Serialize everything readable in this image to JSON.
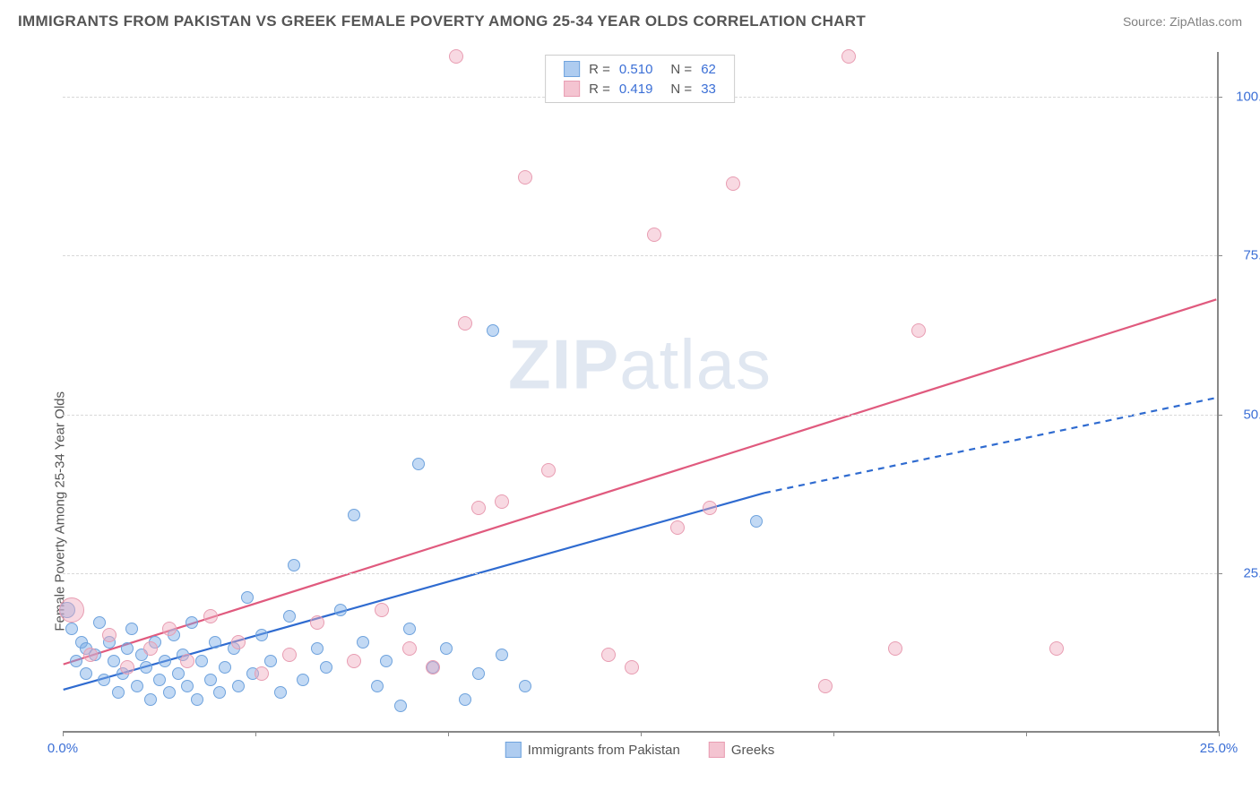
{
  "title": "IMMIGRANTS FROM PAKISTAN VS GREEK FEMALE POVERTY AMONG 25-34 YEAR OLDS CORRELATION CHART",
  "source": "Source: ZipAtlas.com",
  "y_axis_label": "Female Poverty Among 25-34 Year Olds",
  "watermark_a": "ZIP",
  "watermark_b": "atlas",
  "x_range": [
    0,
    25
  ],
  "y_range": [
    0,
    107
  ],
  "y_ticks": [
    {
      "v": 25,
      "label": "25.0%"
    },
    {
      "v": 50,
      "label": "50.0%"
    },
    {
      "v": 75,
      "label": "75.0%"
    },
    {
      "v": 100,
      "label": "100.0%"
    }
  ],
  "x_ticks_minor": [
    0,
    4.17,
    8.33,
    12.5,
    16.67,
    20.83,
    25
  ],
  "x_tick_left": {
    "v": 0,
    "label": "0.0%"
  },
  "x_tick_right": {
    "v": 25,
    "label": "25.0%"
  },
  "series": [
    {
      "name": "Immigrants from Pakistan",
      "color_fill": "rgba(120,170,230,0.45)",
      "color_stroke": "#6fa3dd",
      "swatch_fill": "#aeccf0",
      "swatch_stroke": "#6fa3dd",
      "trend_color": "#2f6bd0",
      "R": "0.510",
      "N": "62",
      "trend": {
        "x1": 0,
        "y1": 6.5,
        "x2": 15.2,
        "y2": 37.5,
        "x2_ext": 25,
        "y2_ext": 52.5,
        "dashed_ext": true
      },
      "points": [
        {
          "x": 0.1,
          "y": 19,
          "r": 9
        },
        {
          "x": 0.2,
          "y": 16,
          "r": 7
        },
        {
          "x": 0.3,
          "y": 11,
          "r": 7
        },
        {
          "x": 0.4,
          "y": 14,
          "r": 7
        },
        {
          "x": 0.5,
          "y": 13,
          "r": 7
        },
        {
          "x": 0.5,
          "y": 9,
          "r": 7
        },
        {
          "x": 0.7,
          "y": 12,
          "r": 7
        },
        {
          "x": 0.8,
          "y": 17,
          "r": 7
        },
        {
          "x": 0.9,
          "y": 8,
          "r": 7
        },
        {
          "x": 1.0,
          "y": 14,
          "r": 7
        },
        {
          "x": 1.1,
          "y": 11,
          "r": 7
        },
        {
          "x": 1.2,
          "y": 6,
          "r": 7
        },
        {
          "x": 1.3,
          "y": 9,
          "r": 7
        },
        {
          "x": 1.4,
          "y": 13,
          "r": 7
        },
        {
          "x": 1.5,
          "y": 16,
          "r": 7
        },
        {
          "x": 1.6,
          "y": 7,
          "r": 7
        },
        {
          "x": 1.7,
          "y": 12,
          "r": 7
        },
        {
          "x": 1.8,
          "y": 10,
          "r": 7
        },
        {
          "x": 1.9,
          "y": 5,
          "r": 7
        },
        {
          "x": 2.0,
          "y": 14,
          "r": 7
        },
        {
          "x": 2.1,
          "y": 8,
          "r": 7
        },
        {
          "x": 2.2,
          "y": 11,
          "r": 7
        },
        {
          "x": 2.3,
          "y": 6,
          "r": 7
        },
        {
          "x": 2.4,
          "y": 15,
          "r": 7
        },
        {
          "x": 2.5,
          "y": 9,
          "r": 7
        },
        {
          "x": 2.6,
          "y": 12,
          "r": 7
        },
        {
          "x": 2.7,
          "y": 7,
          "r": 7
        },
        {
          "x": 2.8,
          "y": 17,
          "r": 7
        },
        {
          "x": 2.9,
          "y": 5,
          "r": 7
        },
        {
          "x": 3.0,
          "y": 11,
          "r": 7
        },
        {
          "x": 3.2,
          "y": 8,
          "r": 7
        },
        {
          "x": 3.3,
          "y": 14,
          "r": 7
        },
        {
          "x": 3.4,
          "y": 6,
          "r": 7
        },
        {
          "x": 3.5,
          "y": 10,
          "r": 7
        },
        {
          "x": 3.7,
          "y": 13,
          "r": 7
        },
        {
          "x": 3.8,
          "y": 7,
          "r": 7
        },
        {
          "x": 4.0,
          "y": 21,
          "r": 7
        },
        {
          "x": 4.1,
          "y": 9,
          "r": 7
        },
        {
          "x": 4.3,
          "y": 15,
          "r": 7
        },
        {
          "x": 4.5,
          "y": 11,
          "r": 7
        },
        {
          "x": 4.7,
          "y": 6,
          "r": 7
        },
        {
          "x": 4.9,
          "y": 18,
          "r": 7
        },
        {
          "x": 5.0,
          "y": 26,
          "r": 7
        },
        {
          "x": 5.2,
          "y": 8,
          "r": 7
        },
        {
          "x": 5.5,
          "y": 13,
          "r": 7
        },
        {
          "x": 5.7,
          "y": 10,
          "r": 7
        },
        {
          "x": 6.0,
          "y": 19,
          "r": 7
        },
        {
          "x": 6.3,
          "y": 34,
          "r": 7
        },
        {
          "x": 6.5,
          "y": 14,
          "r": 7
        },
        {
          "x": 6.8,
          "y": 7,
          "r": 7
        },
        {
          "x": 7.0,
          "y": 11,
          "r": 7
        },
        {
          "x": 7.3,
          "y": 4,
          "r": 7
        },
        {
          "x": 7.5,
          "y": 16,
          "r": 7
        },
        {
          "x": 7.7,
          "y": 42,
          "r": 7
        },
        {
          "x": 8.0,
          "y": 10,
          "r": 7
        },
        {
          "x": 8.3,
          "y": 13,
          "r": 7
        },
        {
          "x": 8.7,
          "y": 5,
          "r": 7
        },
        {
          "x": 9.0,
          "y": 9,
          "r": 7
        },
        {
          "x": 9.3,
          "y": 63,
          "r": 7
        },
        {
          "x": 9.5,
          "y": 12,
          "r": 7
        },
        {
          "x": 10.0,
          "y": 7,
          "r": 7
        },
        {
          "x": 15.0,
          "y": 33,
          "r": 7
        }
      ]
    },
    {
      "name": "Greeks",
      "color_fill": "rgba(240,170,190,0.45)",
      "color_stroke": "#e89db2",
      "swatch_fill": "#f4c4d1",
      "swatch_stroke": "#e89db2",
      "trend_color": "#e05a7e",
      "R": "0.419",
      "N": "33",
      "trend": {
        "x1": 0,
        "y1": 10.5,
        "x2": 25,
        "y2": 68,
        "dashed_ext": false
      },
      "points": [
        {
          "x": 0.2,
          "y": 19,
          "r": 14
        },
        {
          "x": 0.6,
          "y": 12,
          "r": 8
        },
        {
          "x": 1.0,
          "y": 15,
          "r": 8
        },
        {
          "x": 1.4,
          "y": 10,
          "r": 8
        },
        {
          "x": 1.9,
          "y": 13,
          "r": 8
        },
        {
          "x": 2.3,
          "y": 16,
          "r": 8
        },
        {
          "x": 2.7,
          "y": 11,
          "r": 8
        },
        {
          "x": 3.2,
          "y": 18,
          "r": 8
        },
        {
          "x": 3.8,
          "y": 14,
          "r": 8
        },
        {
          "x": 4.3,
          "y": 9,
          "r": 8
        },
        {
          "x": 4.9,
          "y": 12,
          "r": 8
        },
        {
          "x": 5.5,
          "y": 17,
          "r": 8
        },
        {
          "x": 6.3,
          "y": 11,
          "r": 8
        },
        {
          "x": 6.9,
          "y": 19,
          "r": 8
        },
        {
          "x": 7.5,
          "y": 13,
          "r": 8
        },
        {
          "x": 8.0,
          "y": 10,
          "r": 8
        },
        {
          "x": 8.5,
          "y": 106,
          "r": 8
        },
        {
          "x": 8.7,
          "y": 64,
          "r": 8
        },
        {
          "x": 9.0,
          "y": 35,
          "r": 8
        },
        {
          "x": 9.5,
          "y": 36,
          "r": 8
        },
        {
          "x": 10.0,
          "y": 87,
          "r": 8
        },
        {
          "x": 10.5,
          "y": 41,
          "r": 8
        },
        {
          "x": 11.8,
          "y": 12,
          "r": 8
        },
        {
          "x": 12.3,
          "y": 10,
          "r": 8
        },
        {
          "x": 12.8,
          "y": 78,
          "r": 8
        },
        {
          "x": 13.3,
          "y": 32,
          "r": 8
        },
        {
          "x": 14.0,
          "y": 35,
          "r": 8
        },
        {
          "x": 14.5,
          "y": 86,
          "r": 8
        },
        {
          "x": 16.5,
          "y": 7,
          "r": 8
        },
        {
          "x": 17.0,
          "y": 106,
          "r": 8
        },
        {
          "x": 18.0,
          "y": 13,
          "r": 8
        },
        {
          "x": 18.5,
          "y": 63,
          "r": 8
        },
        {
          "x": 21.5,
          "y": 13,
          "r": 8
        }
      ]
    }
  ]
}
